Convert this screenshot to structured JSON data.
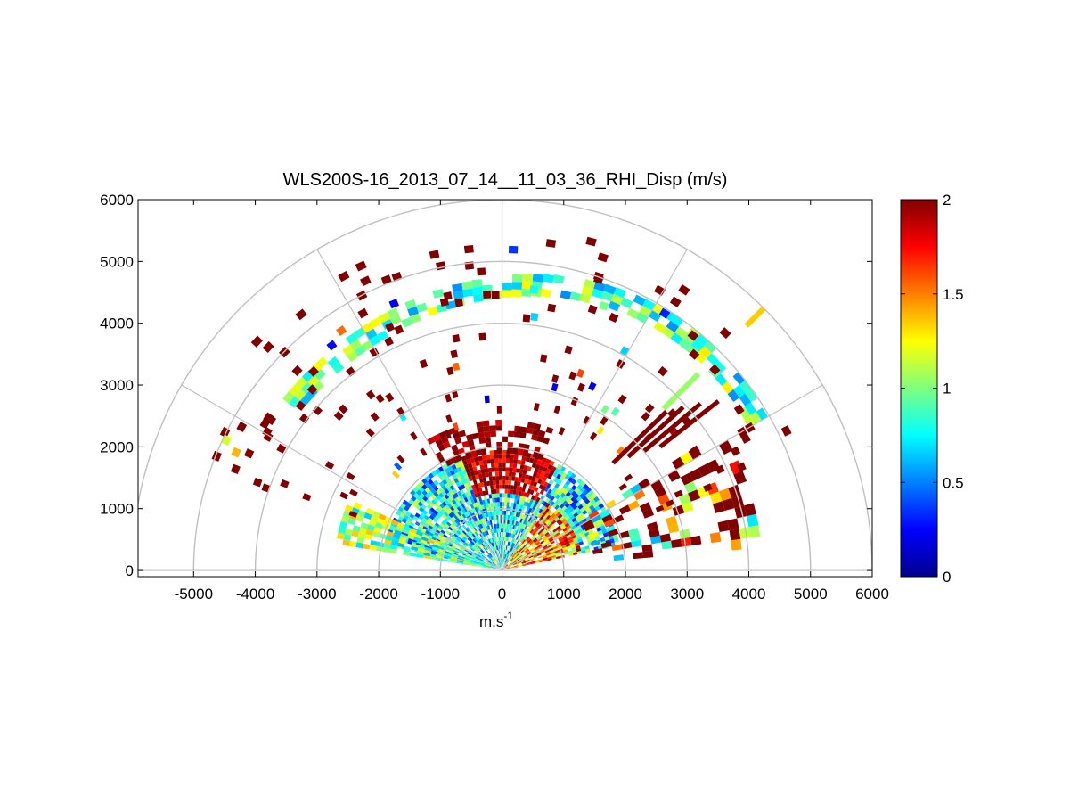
{
  "chart_data": {
    "type": "heatmap",
    "title": "WLS200S-16_2013_07_14__11_03_36_RHI_Disp (m/s)",
    "xlabel": "m.s",
    "xlabel_sup": "-1",
    "ylabel": "",
    "xlim": [
      -5900,
      6000
    ],
    "ylim": [
      -100,
      6000
    ],
    "x_ticks": [
      -5000,
      -4000,
      -3000,
      -2000,
      -1000,
      0,
      1000,
      2000,
      3000,
      4000,
      5000,
      6000
    ],
    "y_ticks": [
      0,
      1000,
      2000,
      3000,
      4000,
      5000,
      6000
    ],
    "grid": "polar",
    "polar_rings": [
      1000,
      2000,
      3000,
      4000,
      5000,
      6000
    ],
    "polar_spokes_deg": [
      0,
      30,
      60,
      90,
      120,
      150,
      180
    ],
    "colormap": "jet",
    "colorbar": {
      "min": 0,
      "max": 2,
      "ticks": [
        0,
        0.5,
        1,
        1.5,
        2
      ],
      "tick_labels": [
        "0",
        "0.5",
        "1",
        "1.5",
        "2"
      ],
      "position": "right"
    },
    "approx_features": [
      {
        "kind": "arc_band",
        "range_m": [
          4300,
          4800
        ],
        "elev_deg": [
          30,
          140
        ],
        "value": 0.8
      },
      {
        "kind": "arc_band",
        "range_m": [
          1300,
          2200
        ],
        "elev_deg": [
          75,
          110
        ],
        "value": 2.0
      },
      {
        "kind": "sector",
        "range_m": [
          0,
          1800
        ],
        "elev_deg": [
          10,
          170
        ],
        "value": 0.7
      },
      {
        "kind": "beam",
        "elev_deg": 45,
        "range_m": [
          5600,
          6000
        ],
        "value": 1.3
      },
      {
        "kind": "beam",
        "elev_deg": 45,
        "range_m": [
          3700,
          4500
        ],
        "value": 1.05
      }
    ]
  }
}
